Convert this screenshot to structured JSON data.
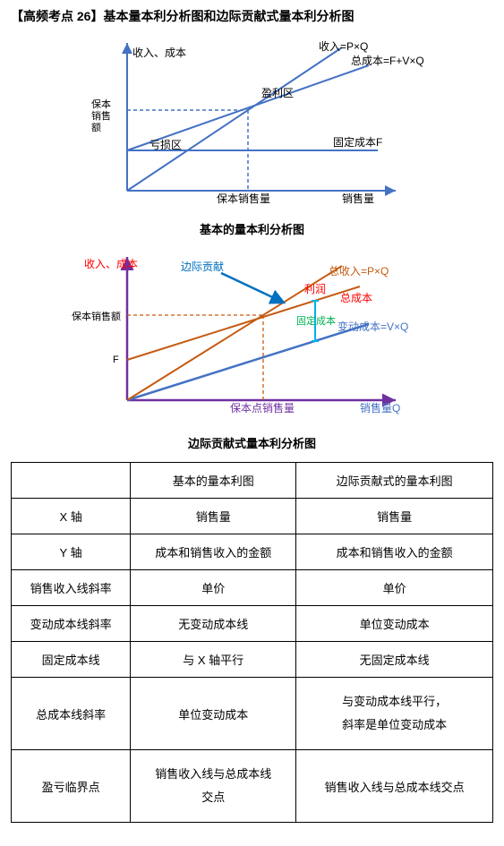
{
  "title": "【高频考点 26】基本量本利分析图和边际贡献式量本利分析图",
  "chart1": {
    "caption": "基本的量本利分析图",
    "yAxisLabel": "收入、成本",
    "xAxisLabel": "销售量",
    "breakEvenY": "保本销售额",
    "breakEvenX": "保本销售量",
    "revenueLabel": "收入=P×Q",
    "totalCostLabel": "总成本=F+V×Q",
    "fixedCostLabel": "固定成本F",
    "profitArea": "盈利区",
    "lossArea": "亏损区",
    "axisColor": "#4472c4",
    "lineColors": {
      "revenue": "#4472c4",
      "totalCost": "#4472c4",
      "fixedCost": "#4472c4",
      "dashed": "#4472c4"
    }
  },
  "chart2": {
    "caption": "边际贡献式量本利分析图",
    "yAxisLabel": "收入、成本",
    "xAxisLabel": "销售量Q",
    "contribLabel": "边际贡献",
    "revenueLabel": "总收入=P×Q",
    "totalCostLabel": "总成本",
    "varCostLabel": "变动成本=V×Q",
    "profitLabel": "利润",
    "fixedCostLabel": "固定成本",
    "breakEvenY": "保本销售额",
    "breakEvenX": "保本点销售量",
    "fLabel": "F",
    "colors": {
      "axis": "#7030a0",
      "revenue": "#c55a11",
      "totalCost": "#c55a11",
      "varCost": "#4472c4",
      "contrib": "#0070c0",
      "profitText": "#ff0000",
      "fixedCostText": "#00b050",
      "fixedBrace": "#00b0f0",
      "dashed": "#c55a11"
    }
  },
  "table": {
    "headers": [
      "",
      "基本的量本利图",
      "边际贡献式的量本利图"
    ],
    "rows": [
      [
        "X 轴",
        "销售量",
        "销售量"
      ],
      [
        "Y 轴",
        "成本和销售收入的金额",
        "成本和销售收入的金额"
      ],
      [
        "销售收入线斜率",
        "单价",
        "单价"
      ],
      [
        "变动成本线斜率",
        "无变动成本线",
        "单位变动成本"
      ],
      [
        "固定成本线",
        "与 X 轴平行",
        "无固定成本线"
      ],
      [
        "总成本线斜率",
        "单位变动成本",
        "与变动成本线平行，斜率是单位变动成本"
      ],
      [
        "盈亏临界点",
        "销售收入线与总成本线交点",
        "销售收入线与总成本线交点"
      ]
    ]
  }
}
